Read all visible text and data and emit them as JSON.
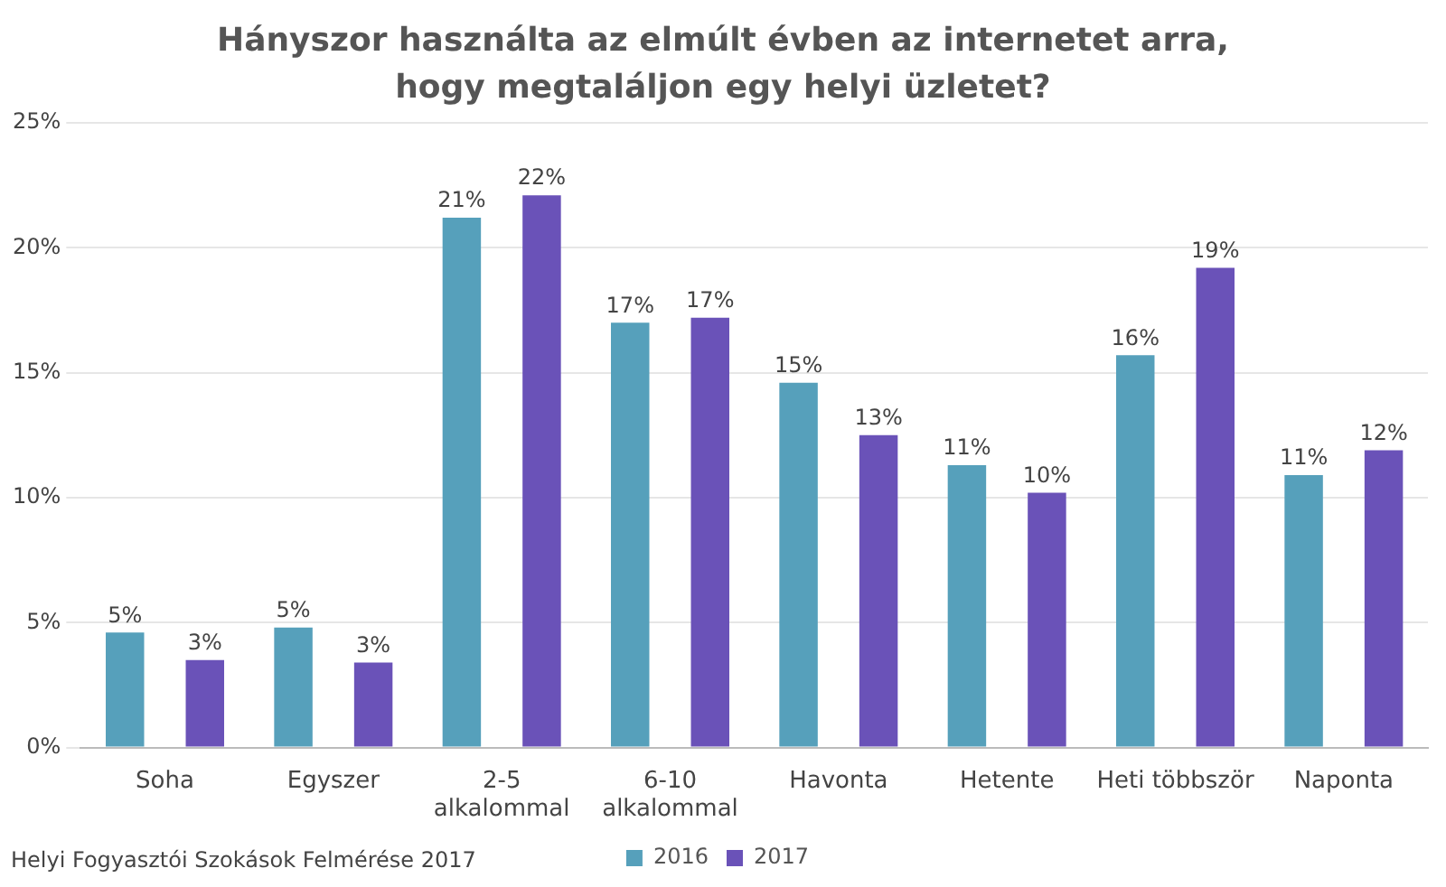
{
  "chart_data": {
    "type": "bar",
    "title": "Hányszor használta az elmúlt évben az internetet arra, hogy megtaláljon egy helyi üzletet?",
    "categories": [
      "Soha",
      "Egyszer",
      "2-5 alkalommal",
      "6-10 alkalommal",
      "Havonta",
      "Hetente",
      "Heti többször",
      "Naponta"
    ],
    "series": [
      {
        "name": "2016",
        "color": "#56a0bb",
        "values": [
          4.6,
          4.8,
          21.2,
          17.0,
          14.6,
          11.3,
          15.7,
          10.9
        ],
        "value_labels": [
          "5%",
          "5%",
          "21%",
          "17%",
          "15%",
          "11%",
          "16%",
          "11%"
        ]
      },
      {
        "name": "2017",
        "color": "#6a52b8",
        "values": [
          3.5,
          3.4,
          22.1,
          17.2,
          12.5,
          10.2,
          19.2,
          11.9
        ],
        "value_labels": [
          "3%",
          "3%",
          "22%",
          "17%",
          "13%",
          "10%",
          "19%",
          "12%"
        ]
      }
    ],
    "ylim": [
      0,
      25
    ],
    "yticks": [
      {
        "value": 0,
        "label": "0%"
      },
      {
        "value": 5,
        "label": "5%"
      },
      {
        "value": 10,
        "label": "10%"
      },
      {
        "value": 15,
        "label": "15%"
      },
      {
        "value": 20,
        "label": "20%"
      },
      {
        "value": 25,
        "label": "25%"
      }
    ],
    "grid": "y",
    "legend": "bottom",
    "annotations": [
      "Helyi Fogyasztói Szokások Felmérése 2017"
    ]
  }
}
